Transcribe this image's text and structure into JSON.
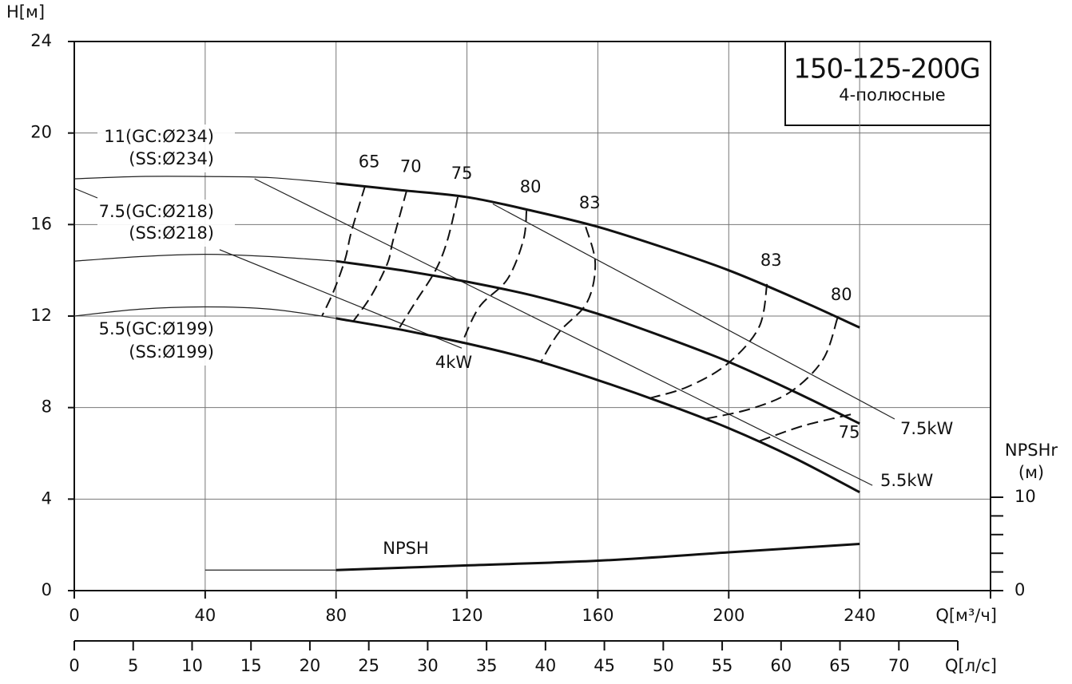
{
  "chart_data": {
    "type": "line",
    "title": "150-125-200G",
    "subtitle": "4-полюсные",
    "y_label": "H[м]",
    "x_label": "Q[м³/ч]",
    "x2_label": "Q[л/с]",
    "y2_label": "NPSHr",
    "y2_unit": "(м)",
    "xlim": [
      0,
      280
    ],
    "xticks": [
      0,
      40,
      80,
      120,
      160,
      200,
      240
    ],
    "ylim": [
      0,
      24
    ],
    "yticks": [
      0,
      4,
      8,
      12,
      16,
      20,
      24
    ],
    "y2lim": [
      0,
      58.8
    ],
    "y2ticks": [
      0,
      10
    ],
    "y2minor_ticks": [
      2,
      4,
      6,
      8
    ],
    "x2lim": [
      0,
      75
    ],
    "x2ticks": [
      0,
      5,
      10,
      15,
      20,
      25,
      30,
      35,
      40,
      45,
      50,
      55,
      60,
      65,
      70
    ],
    "grid": true,
    "bold_from": 80,
    "series": [
      {
        "name": "11(GC:Ø234)",
        "sub_name": "(SS:Ø234)",
        "color": "#111111",
        "x": [
          0,
          20,
          40,
          60,
          80,
          100,
          120,
          140,
          160,
          180,
          200,
          220,
          240
        ],
        "values": [
          18.0,
          18.1,
          18.1,
          18.05,
          17.8,
          17.5,
          17.2,
          16.6,
          15.9,
          15.0,
          14.0,
          12.8,
          11.5
        ]
      },
      {
        "name": "7.5(GC:Ø218)",
        "sub_name": "(SS:Ø218)",
        "color": "#111111",
        "x": [
          0,
          20,
          40,
          60,
          80,
          100,
          120,
          140,
          160,
          180,
          200,
          220,
          240
        ],
        "values": [
          14.4,
          14.6,
          14.7,
          14.6,
          14.4,
          14.0,
          13.5,
          12.9,
          12.1,
          11.1,
          10.0,
          8.7,
          7.3
        ]
      },
      {
        "name": "5.5(GC:Ø199)",
        "sub_name": "(SS:Ø199)",
        "color": "#111111",
        "x": [
          0,
          20,
          40,
          60,
          80,
          100,
          120,
          140,
          160,
          180,
          200,
          220,
          240
        ],
        "values": [
          12.0,
          12.3,
          12.4,
          12.3,
          11.9,
          11.4,
          10.8,
          10.1,
          9.2,
          8.2,
          7.1,
          5.8,
          4.3
        ]
      }
    ],
    "power_lines": [
      {
        "name": "4kW",
        "x": [
          44.4,
          118.4
        ],
        "values": [
          14.9,
          10.6
        ]
      },
      {
        "name": "5.5kW",
        "x": [
          55.1,
          243.9
        ],
        "values": [
          18.0,
          4.6
        ]
      },
      {
        "name": "7.5kW",
        "x": [
          127.9,
          250.7
        ],
        "values": [
          16.9,
          7.5
        ]
      }
    ],
    "efficiency_curves": [
      {
        "name": "65",
        "x": [
          88.9,
          84.7,
          82.8,
          79.3,
          75.7
        ],
        "values": [
          17.7,
          15.7,
          14.5,
          13.1,
          12.0
        ]
      },
      {
        "name": "70",
        "x": [
          101.6,
          97.4,
          95.7,
          90.8,
          85.4
        ],
        "values": [
          17.5,
          15.3,
          14.3,
          12.9,
          11.8
        ]
      },
      {
        "name": "75",
        "x": [
          117.2,
          114.0,
          110.4,
          104.2,
          99.4
        ],
        "values": [
          17.2,
          15.3,
          14.0,
          12.6,
          11.5
        ]
      },
      {
        "name": "80",
        "x": [
          138.2,
          137.2,
          132.3,
          123.8,
          118.4
        ],
        "values": [
          16.6,
          15.3,
          13.6,
          12.4,
          10.8
        ]
      },
      {
        "name": "83",
        "x": [
          156.3,
          159.2,
          156.7,
          148.2,
          142.6
        ],
        "values": [
          15.9,
          14.3,
          12.6,
          11.3,
          10.0
        ]
      },
      {
        "name": "83",
        "x": [
          211.7,
          209.2,
          199.5,
          187.3,
          175.5
        ],
        "values": [
          13.4,
          11.5,
          9.9,
          8.9,
          8.4
        ]
      },
      {
        "name": "80",
        "x": [
          233.2,
          228.8,
          219.0,
          206.8,
          192.6
        ],
        "values": [
          11.9,
          10.1,
          8.7,
          7.95,
          7.5
        ]
      },
      {
        "name": "75",
        "x": [
          237.3,
          222.7,
          208.7
        ],
        "values": [
          7.7,
          7.2,
          6.5
        ]
      }
    ],
    "npsh": {
      "name": "NPSH",
      "axis": "y2",
      "x": [
        40,
        80,
        120,
        160,
        200,
        240
      ],
      "values": [
        2.2,
        2.2,
        2.7,
        3.2,
        4.1,
        5.0
      ]
    }
  }
}
